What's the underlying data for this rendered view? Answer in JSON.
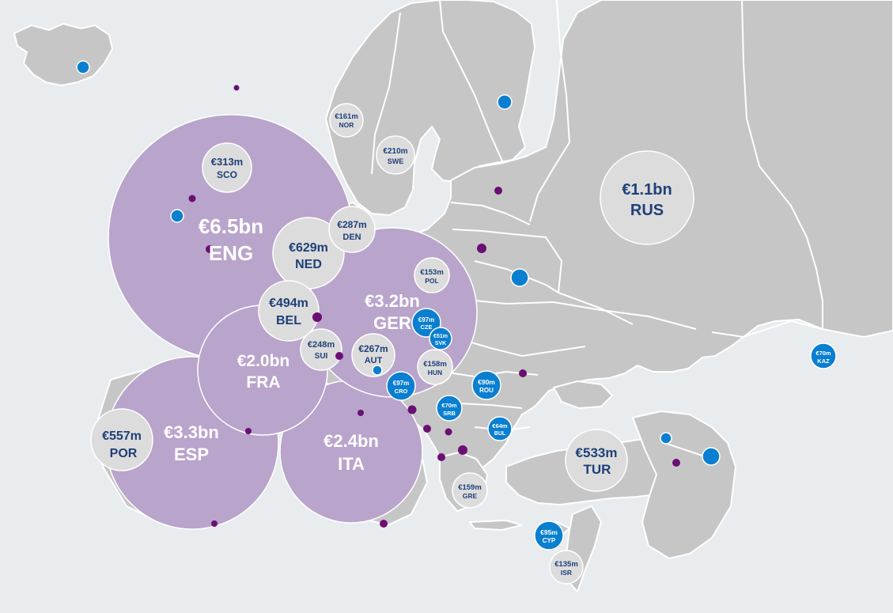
{
  "colors": {
    "sea": "#e8ecee",
    "land": "#c6c6c6",
    "border": "#ffffff",
    "big_bubble": "#b9a4cc",
    "small_bubble": "#dcdcdc",
    "blue_bubble": "#0a7fd0",
    "dark_text": "#1f3f78",
    "purple_dot": "#6a0f73"
  },
  "bubbles": [
    {
      "id": "eng",
      "value": "€6.5bn",
      "code": "ENG",
      "style": "big"
    },
    {
      "id": "esp",
      "value": "€3.3bn",
      "code": "ESP",
      "style": "big"
    },
    {
      "id": "ger",
      "value": "€3.2bn",
      "code": "GER",
      "style": "big"
    },
    {
      "id": "ita",
      "value": "€2.4bn",
      "code": "ITA",
      "style": "big"
    },
    {
      "id": "fra",
      "value": "€2.0bn",
      "code": "FRA",
      "style": "big"
    },
    {
      "id": "rus",
      "value": "€1.1bn",
      "code": "RUS",
      "style": "grey"
    },
    {
      "id": "ned",
      "value": "€629m",
      "code": "NED",
      "style": "grey"
    },
    {
      "id": "por",
      "value": "€557m",
      "code": "POR",
      "style": "grey"
    },
    {
      "id": "tur",
      "value": "€533m",
      "code": "TUR",
      "style": "grey"
    },
    {
      "id": "bel",
      "value": "€494m",
      "code": "BEL",
      "style": "grey"
    },
    {
      "id": "sco",
      "value": "€313m",
      "code": "SCO",
      "style": "grey"
    },
    {
      "id": "den",
      "value": "€287m",
      "code": "DEN",
      "style": "grey"
    },
    {
      "id": "aut",
      "value": "€267m",
      "code": "AUT",
      "style": "grey"
    },
    {
      "id": "sui",
      "value": "€248m",
      "code": "SUI",
      "style": "grey"
    },
    {
      "id": "swe",
      "value": "€210m",
      "code": "SWE",
      "style": "grey"
    },
    {
      "id": "nor",
      "value": "€161m",
      "code": "NOR",
      "style": "grey"
    },
    {
      "id": "gre",
      "value": "€159m",
      "code": "GRE",
      "style": "grey"
    },
    {
      "id": "hun",
      "value": "€158m",
      "code": "HUN",
      "style": "grey"
    },
    {
      "id": "pol",
      "value": "€153m",
      "code": "POL",
      "style": "grey"
    },
    {
      "id": "isr",
      "value": "€135m",
      "code": "ISR",
      "style": "grey"
    },
    {
      "id": "cze",
      "value": "€97m",
      "code": "CZE",
      "style": "blue"
    },
    {
      "id": "cro",
      "value": "€97m",
      "code": "CRO",
      "style": "blue"
    },
    {
      "id": "cyp",
      "value": "€95m",
      "code": "CYP",
      "style": "blue"
    },
    {
      "id": "rou",
      "value": "€90m",
      "code": "ROU",
      "style": "blue"
    },
    {
      "id": "kaz",
      "value": "€70m",
      "code": "KAZ",
      "style": "blue"
    },
    {
      "id": "srb",
      "value": "€70m",
      "code": "SRB",
      "style": "blue"
    },
    {
      "id": "bul",
      "value": "€64m",
      "code": "BUL",
      "style": "blue"
    },
    {
      "id": "svk",
      "value": "€51m",
      "code": "SVK",
      "style": "blue"
    }
  ]
}
